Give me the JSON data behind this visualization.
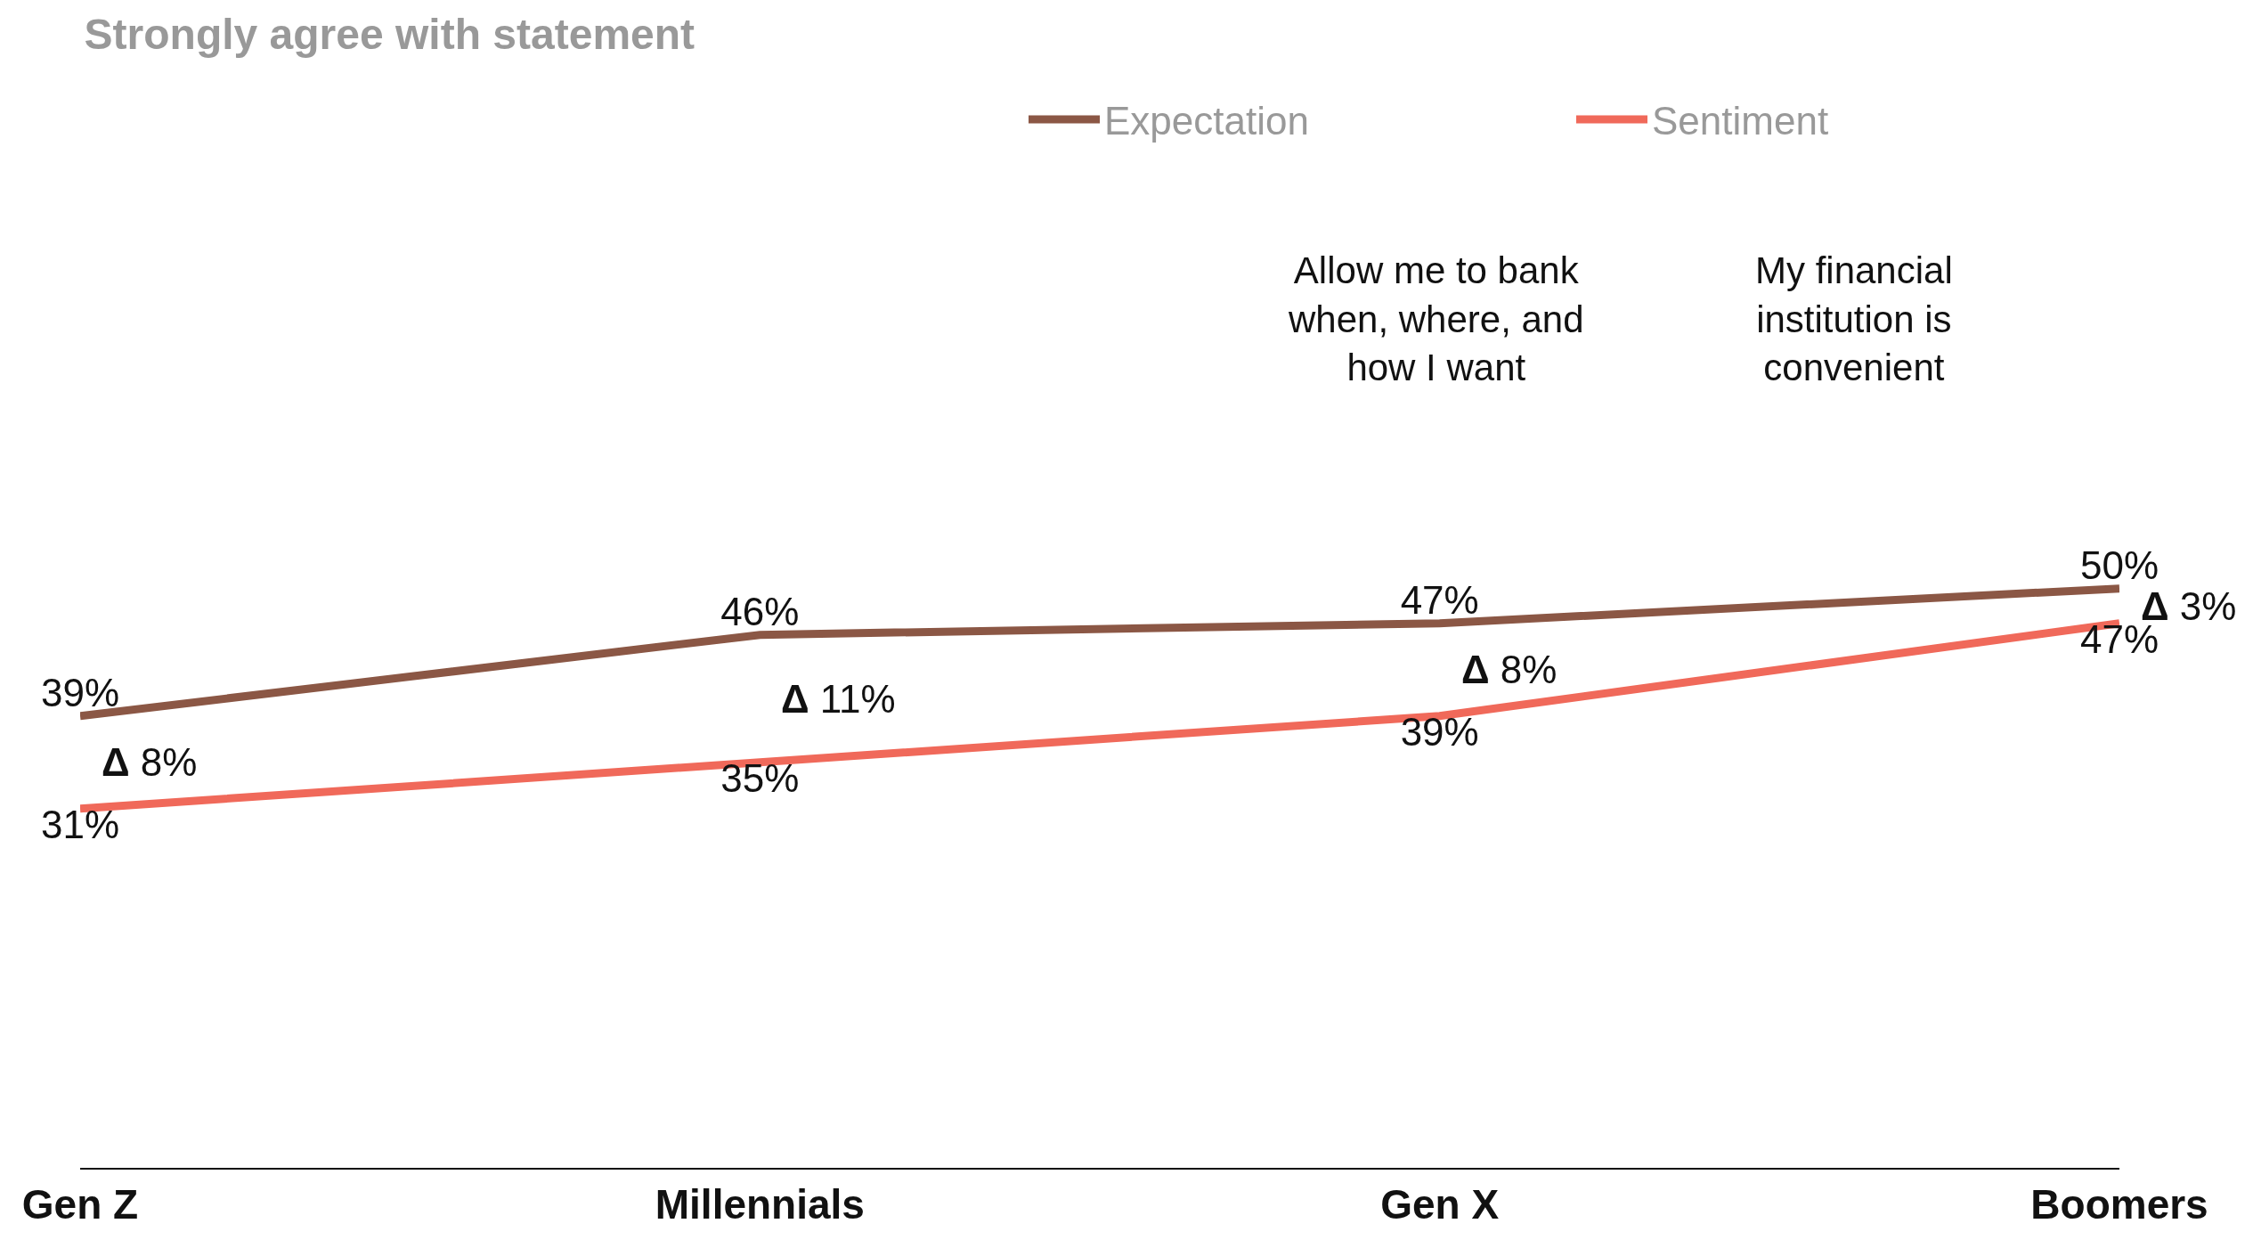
{
  "chart_data": {
    "type": "line",
    "title": "Strongly agree with statement",
    "categories": [
      "Gen Z",
      "Millennials",
      "Gen X",
      "Boomers"
    ],
    "series": [
      {
        "name": "Expectation",
        "color": "#8b5745",
        "values": [
          39,
          46,
          47,
          50
        ],
        "value_labels": [
          "39%",
          "46%",
          "47%",
          "50%"
        ]
      },
      {
        "name": "Sentiment",
        "color": "#f0695a",
        "values": [
          31,
          35,
          39,
          47
        ],
        "value_labels": [
          "31%",
          "35%",
          "39%",
          "47%"
        ]
      }
    ],
    "legend": "top right",
    "marker": "none",
    "line_style": "solid",
    "annotations": [
      "Δ 8%",
      "Δ 11%",
      "Δ 8%",
      "Δ 3%",
      "Allow me to bank\nwhen, where, and\nhow I want",
      "My financial\ninstitution is\nconvenient"
    ]
  }
}
